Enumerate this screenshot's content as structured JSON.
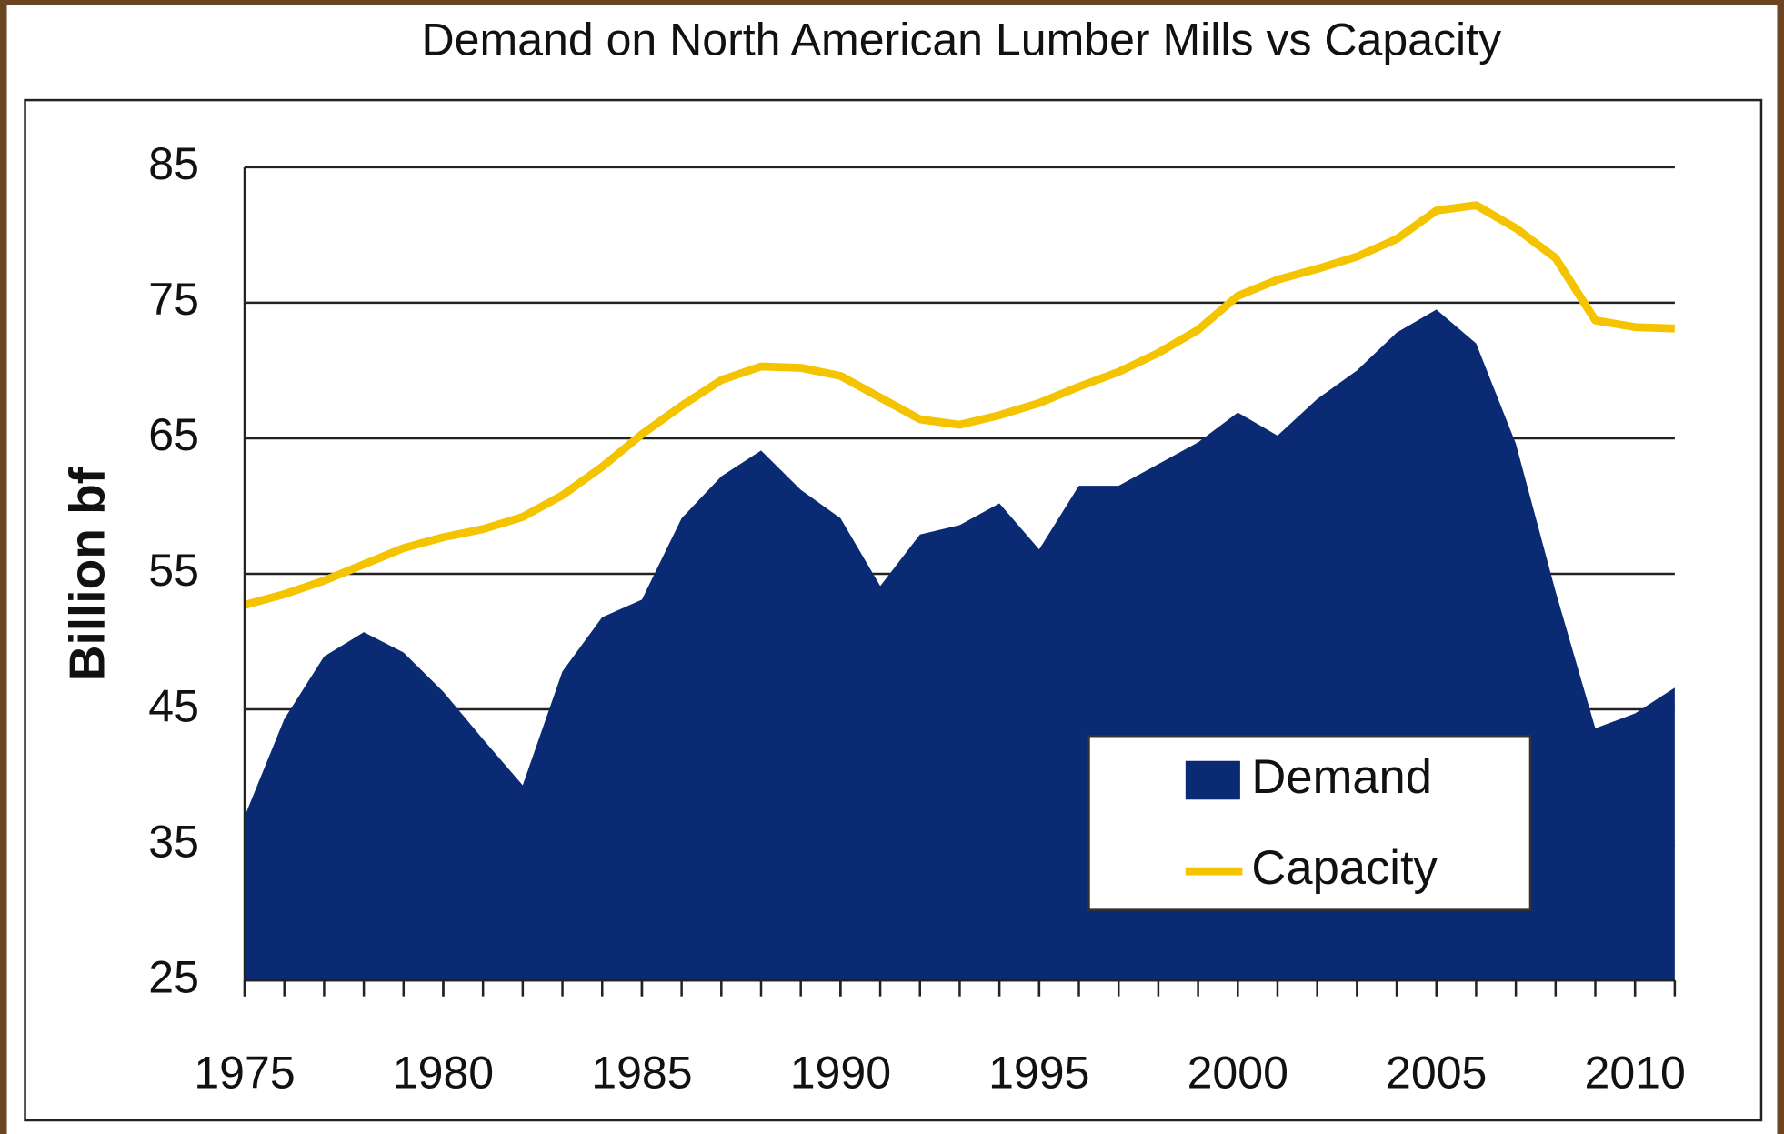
{
  "chart_data": {
    "type": "area-line",
    "title": "Demand on North American Lumber Mills vs Capacity",
    "y_label": "Billion bf",
    "x": [
      1975,
      1976,
      1977,
      1978,
      1979,
      1980,
      1981,
      1982,
      1983,
      1984,
      1985,
      1986,
      1987,
      1988,
      1989,
      1990,
      1991,
      1992,
      1993,
      1994,
      1995,
      1996,
      1997,
      1998,
      1999,
      2000,
      2001,
      2002,
      2003,
      2004,
      2005,
      2006,
      2007,
      2008,
      2009,
      2010,
      2011
    ],
    "series": [
      {
        "name": "Demand",
        "color": "#0a2a74",
        "kind": "area",
        "values": [
          37.1,
          44.3,
          48.9,
          50.7,
          49.2,
          46.3,
          42.8,
          39.4,
          47.8,
          51.8,
          53.1,
          59.1,
          62.2,
          64.1,
          61.2,
          59.1,
          54.1,
          57.9,
          58.6,
          60.2,
          56.8,
          61.5,
          61.5,
          63.1,
          64.7,
          66.9,
          65.2,
          67.9,
          70.0,
          72.8,
          74.5,
          72.0,
          64.6,
          53.7,
          43.6,
          44.7,
          46.6
        ]
      },
      {
        "name": "Capacity",
        "color": "#f5c400",
        "kind": "line",
        "values": [
          52.7,
          53.5,
          54.5,
          55.7,
          56.9,
          57.7,
          58.3,
          59.2,
          60.8,
          62.9,
          65.3,
          67.4,
          69.3,
          70.3,
          70.2,
          69.6,
          68.0,
          66.4,
          66.0,
          66.7,
          67.6,
          68.8,
          69.9,
          71.3,
          73.0,
          75.5,
          76.7,
          77.5,
          78.4,
          79.7,
          81.8,
          82.2,
          80.5,
          78.3,
          73.7,
          73.2,
          73.1
        ]
      }
    ],
    "xlim": [
      1975,
      2011
    ],
    "xticks": [
      1975,
      1980,
      1985,
      1990,
      1995,
      2000,
      2005,
      2010
    ],
    "ylim": [
      25,
      85
    ],
    "yticks": [
      25,
      35,
      45,
      55,
      65,
      75,
      85
    ],
    "grid": true,
    "legend": "lower-right"
  }
}
